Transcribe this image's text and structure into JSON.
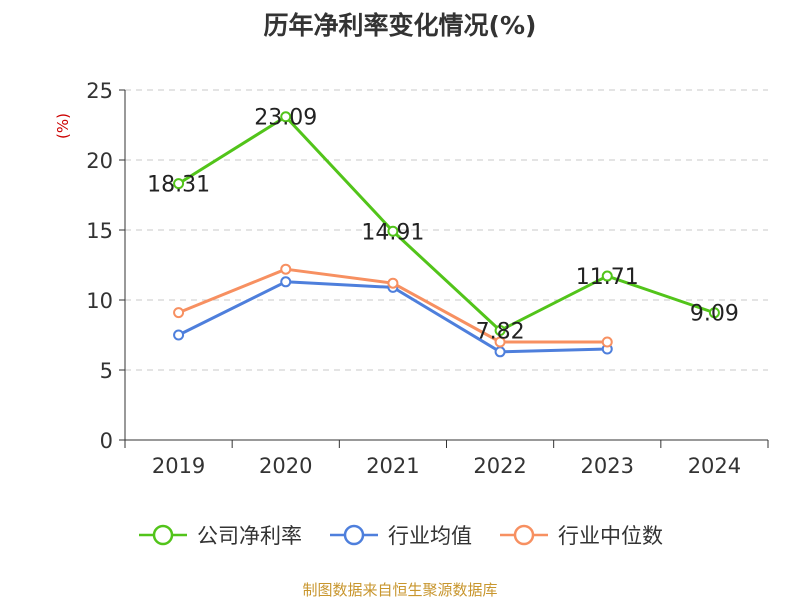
{
  "chart_data": {
    "type": "line",
    "title": "历年净利率变化情况(%)",
    "ylabel": "(%)",
    "xlabel": "",
    "categories": [
      "2019",
      "2020",
      "2021",
      "2022",
      "2023",
      "2024"
    ],
    "ylim": [
      0,
      25
    ],
    "yticks": [
      0,
      5,
      10,
      15,
      20,
      25
    ],
    "grid": true,
    "legend_position": "bottom",
    "series": [
      {
        "name": "公司净利率",
        "color": "#52c41a",
        "values": [
          18.31,
          23.09,
          14.91,
          7.82,
          11.71,
          9.09
        ],
        "show_labels": true
      },
      {
        "name": "行业均值",
        "color": "#4e7fdc",
        "values": [
          7.5,
          11.3,
          10.9,
          6.3,
          6.5,
          null
        ],
        "show_labels": false
      },
      {
        "name": "行业中位数",
        "color": "#f79061",
        "values": [
          9.1,
          12.2,
          11.2,
          7.0,
          7.0,
          null
        ],
        "show_labels": false
      }
    ],
    "ylabel_color": "#cc0000"
  },
  "footer": {
    "source": "制图数据来自恒生聚源数据库"
  }
}
